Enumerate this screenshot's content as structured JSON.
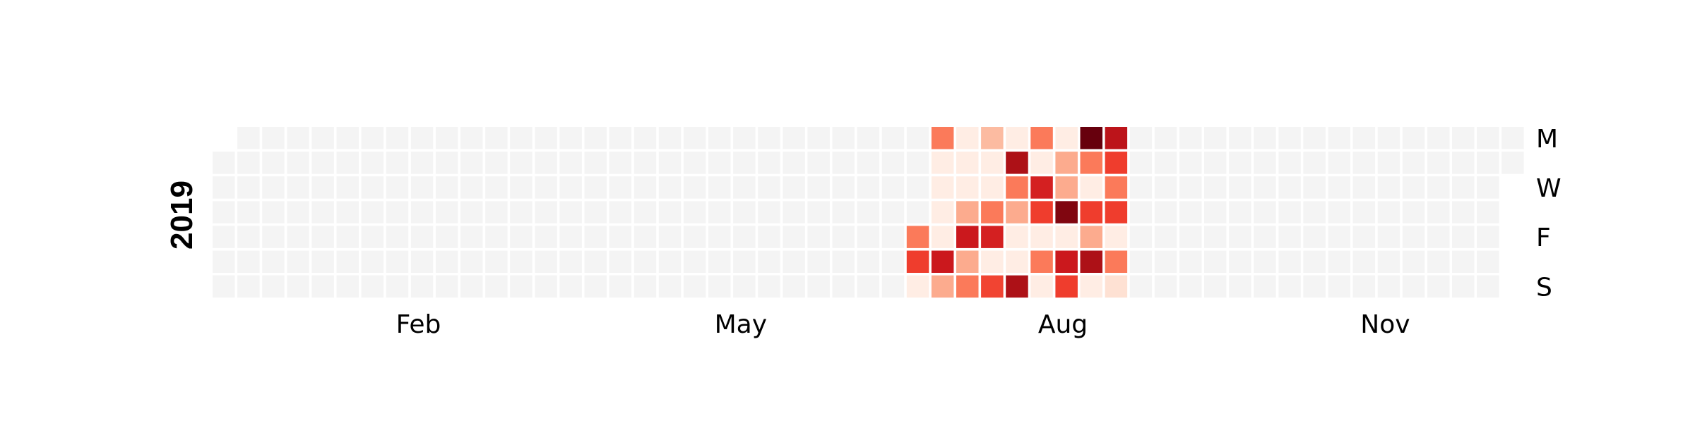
{
  "chart_data": {
    "type": "heatmap",
    "title": "",
    "year": "2019",
    "colormap": "Reds",
    "empty_color": "#f4f4f4",
    "cell_border_color": "#ffffff",
    "start_weekday_row": 1,
    "num_weeks": 53,
    "month_labels": [
      {
        "label": "Feb",
        "week": 7
      },
      {
        "label": "May",
        "week": 20
      },
      {
        "label": "Aug",
        "week": 33
      },
      {
        "label": "Nov",
        "week": 46
      }
    ],
    "weekday_labels": [
      {
        "label": "M",
        "row": 0
      },
      {
        "label": "W",
        "row": 2
      },
      {
        "label": "F",
        "row": 4
      },
      {
        "label": "S",
        "row": 6
      }
    ],
    "data_start_week": 28,
    "data_end_week": 36,
    "active_weeks": [
      {
        "week": 28,
        "values": [
          null,
          null,
          null,
          null,
          0.45,
          0.62,
          0.05
        ]
      },
      {
        "week": 29,
        "values": [
          0.45,
          0.05,
          0.05,
          0.05,
          0.05,
          0.75,
          0.3
        ]
      },
      {
        "week": 30,
        "values": [
          0.05,
          0.05,
          0.05,
          0.3,
          0.75,
          0.3,
          0.45
        ]
      },
      {
        "week": 31,
        "values": [
          0.25,
          0.05,
          0.05,
          0.45,
          0.72,
          0.05,
          0.6
        ]
      },
      {
        "week": 32,
        "values": [
          0.05,
          0.85,
          0.45,
          0.3,
          0.05,
          0.05,
          0.85
        ]
      },
      {
        "week": 33,
        "values": [
          0.45,
          0.05,
          0.72,
          0.62,
          0.05,
          0.45,
          0.05
        ]
      },
      {
        "week": 34,
        "values": [
          0.05,
          0.3,
          0.3,
          0.95,
          0.05,
          0.75,
          0.62
        ]
      },
      {
        "week": 35,
        "values": [
          1.0,
          0.45,
          0.05,
          0.62,
          0.3,
          0.85,
          0.05
        ]
      },
      {
        "week": 36,
        "values": [
          0.8,
          0.62,
          0.45,
          0.62,
          0.05,
          0.45,
          0.12
        ]
      }
    ]
  }
}
